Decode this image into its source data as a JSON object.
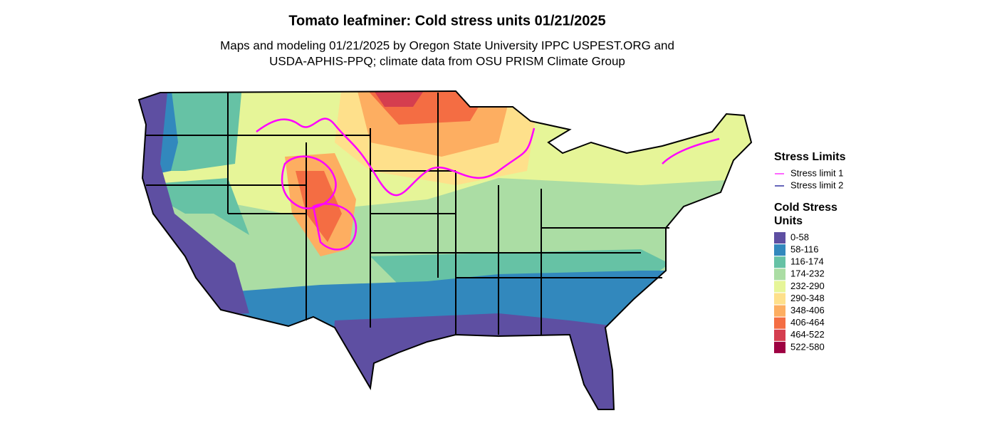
{
  "title": "Tomato leafminer: Cold stress units 01/21/2025",
  "subtitle": [
    "Maps and modeling 01/21/2025 by Oregon State University IPPC USPEST.ORG and",
    "USDA-APHIS-PPQ; climate data from OSU PRISM Climate Group"
  ],
  "legend": {
    "limits_title": "Stress Limits",
    "limits": [
      {
        "label": "Stress limit 1",
        "color": "#ff00ff"
      },
      {
        "label": "Stress limit 2",
        "color": "#00008b"
      }
    ],
    "units_title": [
      "Cold Stress",
      "Units"
    ],
    "units": [
      {
        "label": "0-58",
        "color": "#5e4fa2"
      },
      {
        "label": "58-116",
        "color": "#3288bd"
      },
      {
        "label": "116-174",
        "color": "#66c2a5"
      },
      {
        "label": "174-232",
        "color": "#abdda4"
      },
      {
        "label": "232-290",
        "color": "#e6f598"
      },
      {
        "label": "290-348",
        "color": "#fee08b"
      },
      {
        "label": "348-406",
        "color": "#fdae61"
      },
      {
        "label": "406-464",
        "color": "#f46d43"
      },
      {
        "label": "464-522",
        "color": "#d53e4f"
      },
      {
        "label": "522-580",
        "color": "#9e0142"
      }
    ]
  }
}
